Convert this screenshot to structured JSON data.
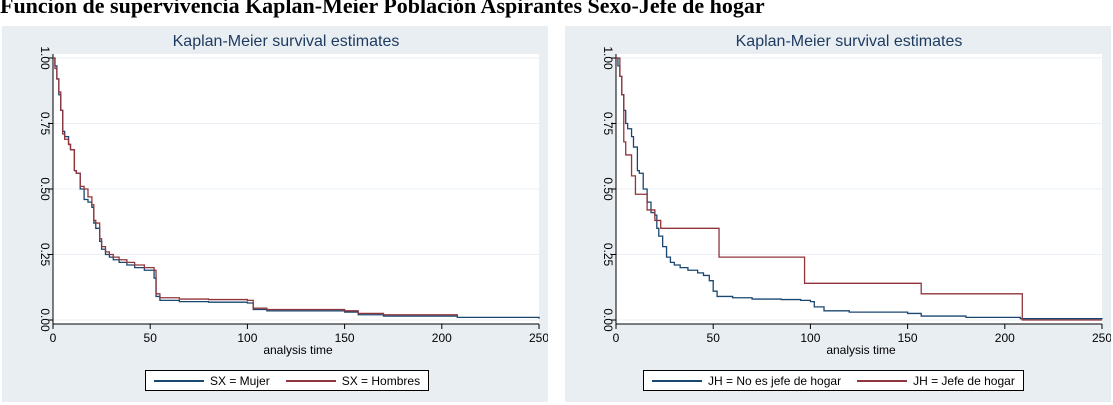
{
  "page_title": "Funcion de supervivencia Kaplan-Meier Población Aspirantes Sexo-Jefe de hogar",
  "chart_data": [
    {
      "type": "line",
      "step": true,
      "title": "Kaplan-Meier survival estimates",
      "xlabel": "analysis time",
      "ylabel": "",
      "xlim": [
        0,
        250
      ],
      "ylim": [
        0,
        1
      ],
      "xticks": [
        "0",
        "50",
        "100",
        "150",
        "200",
        "250"
      ],
      "yticks": [
        "0.00",
        "0.25",
        "0.50",
        "0.75",
        "1.00"
      ],
      "grid": true,
      "legend_position": "bottom",
      "series": [
        {
          "name": "SX = Mujer",
          "color": "#1a476f",
          "points": [
            [
              0,
              1.0
            ],
            [
              1,
              0.97
            ],
            [
              2,
              0.92
            ],
            [
              3,
              0.86
            ],
            [
              4,
              0.8
            ],
            [
              5,
              0.72
            ],
            [
              6,
              0.7
            ],
            [
              8,
              0.67
            ],
            [
              9,
              0.65
            ],
            [
              11,
              0.57
            ],
            [
              12,
              0.56
            ],
            [
              14,
              0.5
            ],
            [
              16,
              0.46
            ],
            [
              18,
              0.45
            ],
            [
              20,
              0.43
            ],
            [
              21,
              0.37
            ],
            [
              22,
              0.35
            ],
            [
              24,
              0.3
            ],
            [
              25,
              0.27
            ],
            [
              27,
              0.25
            ],
            [
              29,
              0.24
            ],
            [
              31,
              0.23
            ],
            [
              34,
              0.22
            ],
            [
              38,
              0.21
            ],
            [
              42,
              0.2
            ],
            [
              47,
              0.19
            ],
            [
              52,
              0.16
            ],
            [
              53,
              0.09
            ],
            [
              55,
              0.075
            ],
            [
              65,
              0.07
            ],
            [
              80,
              0.068
            ],
            [
              100,
              0.065
            ],
            [
              103,
              0.04
            ],
            [
              110,
              0.035
            ],
            [
              150,
              0.03
            ],
            [
              157,
              0.02
            ],
            [
              170,
              0.015
            ],
            [
              208,
              0.01
            ],
            [
              250,
              0.005
            ]
          ]
        },
        {
          "name": "SX = Hombres",
          "color": "#90353b",
          "points": [
            [
              0,
              1.0
            ],
            [
              1,
              0.96
            ],
            [
              2,
              0.92
            ],
            [
              3,
              0.87
            ],
            [
              4,
              0.8
            ],
            [
              5,
              0.71
            ],
            [
              6,
              0.69
            ],
            [
              8,
              0.67
            ],
            [
              9,
              0.65
            ],
            [
              11,
              0.57
            ],
            [
              12,
              0.56
            ],
            [
              14,
              0.51
            ],
            [
              16,
              0.5
            ],
            [
              18,
              0.47
            ],
            [
              20,
              0.44
            ],
            [
              21,
              0.38
            ],
            [
              22,
              0.37
            ],
            [
              24,
              0.31
            ],
            [
              25,
              0.28
            ],
            [
              27,
              0.26
            ],
            [
              29,
              0.25
            ],
            [
              31,
              0.24
            ],
            [
              34,
              0.23
            ],
            [
              38,
              0.22
            ],
            [
              42,
              0.21
            ],
            [
              47,
              0.2
            ],
            [
              52,
              0.19
            ],
            [
              53,
              0.1
            ],
            [
              55,
              0.085
            ],
            [
              65,
              0.08
            ],
            [
              80,
              0.078
            ],
            [
              100,
              0.075
            ],
            [
              103,
              0.045
            ],
            [
              110,
              0.04
            ],
            [
              150,
              0.035
            ],
            [
              157,
              0.025
            ],
            [
              170,
              0.02
            ],
            [
              208,
              0.01
            ]
          ]
        }
      ]
    },
    {
      "type": "line",
      "step": true,
      "title": "Kaplan-Meier survival estimates",
      "xlabel": "analysis time",
      "ylabel": "",
      "xlim": [
        0,
        250
      ],
      "ylim": [
        0,
        1
      ],
      "xticks": [
        "0",
        "50",
        "100",
        "150",
        "200",
        "250"
      ],
      "yticks": [
        "0.00",
        "0.25",
        "0.50",
        "0.75",
        "1.00"
      ],
      "grid": true,
      "legend_position": "bottom",
      "series": [
        {
          "name": "JH = No es jefe de hogar",
          "color": "#1a476f",
          "points": [
            [
              0,
              1.0
            ],
            [
              1,
              0.97
            ],
            [
              2,
              0.93
            ],
            [
              3,
              0.86
            ],
            [
              4,
              0.8
            ],
            [
              5,
              0.75
            ],
            [
              6,
              0.73
            ],
            [
              8,
              0.7
            ],
            [
              9,
              0.66
            ],
            [
              11,
              0.57
            ],
            [
              12,
              0.56
            ],
            [
              14,
              0.5
            ],
            [
              16,
              0.45
            ],
            [
              18,
              0.41
            ],
            [
              20,
              0.4
            ],
            [
              21,
              0.35
            ],
            [
              22,
              0.32
            ],
            [
              24,
              0.28
            ],
            [
              26,
              0.24
            ],
            [
              28,
              0.22
            ],
            [
              30,
              0.21
            ],
            [
              33,
              0.2
            ],
            [
              37,
              0.19
            ],
            [
              42,
              0.18
            ],
            [
              45,
              0.17
            ],
            [
              48,
              0.15
            ],
            [
              50,
              0.11
            ],
            [
              52,
              0.09
            ],
            [
              60,
              0.085
            ],
            [
              70,
              0.08
            ],
            [
              85,
              0.078
            ],
            [
              95,
              0.075
            ],
            [
              100,
              0.07
            ],
            [
              102,
              0.05
            ],
            [
              107,
              0.035
            ],
            [
              120,
              0.03
            ],
            [
              150,
              0.025
            ],
            [
              157,
              0.015
            ],
            [
              180,
              0.01
            ],
            [
              208,
              0.005
            ],
            [
              250,
              0.003
            ]
          ]
        },
        {
          "name": "JH = Jefe de hogar",
          "color": "#90353b",
          "points": [
            [
              0,
              1.0
            ],
            [
              2,
              0.93
            ],
            [
              3,
              0.86
            ],
            [
              4,
              0.68
            ],
            [
              5,
              0.63
            ],
            [
              8,
              0.55
            ],
            [
              10,
              0.48
            ],
            [
              11,
              0.48
            ],
            [
              15,
              0.48
            ],
            [
              16,
              0.42
            ],
            [
              20,
              0.38
            ],
            [
              21,
              0.38
            ],
            [
              23,
              0.35
            ],
            [
              52,
              0.35
            ],
            [
              53,
              0.24
            ],
            [
              96,
              0.24
            ],
            [
              97,
              0.14
            ],
            [
              156,
              0.14
            ],
            [
              157,
              0.1
            ],
            [
              208,
              0.1
            ],
            [
              209,
              0.0
            ],
            [
              250,
              0.0
            ]
          ]
        }
      ]
    }
  ]
}
